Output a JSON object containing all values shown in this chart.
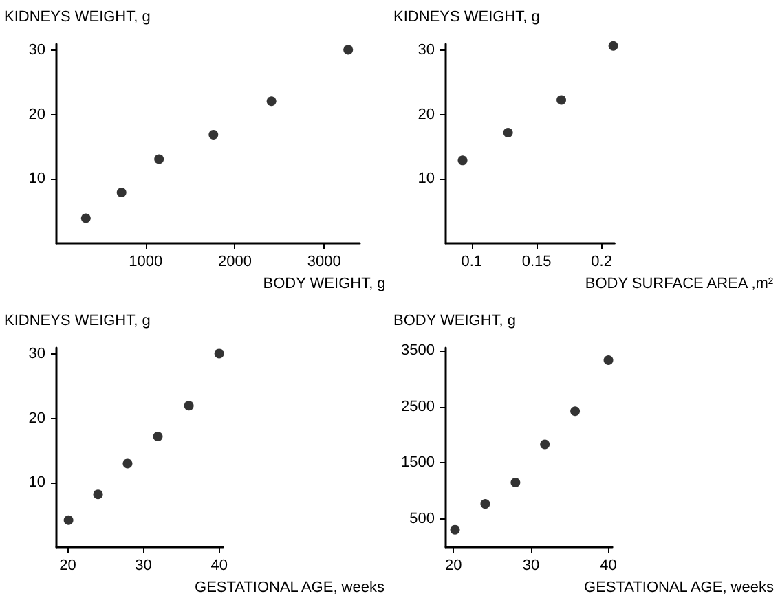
{
  "chart_data": [
    {
      "type": "scatter",
      "ylabel": "KIDNEYS WEIGHT, g",
      "xlabel": "BODY WEIGHT, g",
      "x": [
        330,
        730,
        1150,
        1760,
        2410,
        3270
      ],
      "values": [
        3.9,
        7.9,
        13.1,
        16.9,
        22.1,
        30.1
      ],
      "color": "#000000",
      "marker": "circle",
      "xlim": [
        0,
        3400
      ],
      "xticks": [
        1000,
        2000,
        3000
      ],
      "ylim": [
        0,
        31
      ],
      "yticks": [
        10,
        20,
        30
      ],
      "grid": false
    },
    {
      "type": "scatter",
      "ylabel": "KIDNEYS WEIGHT, g",
      "xlabel": "BODY SURFACE AREA ,m²",
      "x": [
        0.093,
        0.128,
        0.169,
        0.209
      ],
      "values": [
        12.9,
        17.2,
        22.3,
        30.7
      ],
      "color": "#000000",
      "marker": "circle",
      "xlim": [
        0.08,
        0.21
      ],
      "xticks": [
        {
          "value": 0.1,
          "label": "0.1"
        },
        0.15,
        {
          "value": 0.2,
          "label": "0.2"
        }
      ],
      "ylim": [
        0,
        31
      ],
      "yticks": [
        10,
        20,
        30
      ],
      "grid": false
    },
    {
      "type": "scatter",
      "ylabel": "KIDNEYS WEIGHT, g",
      "xlabel": "GESTATIONAL AGE, weeks",
      "x": [
        20.1,
        24,
        27.9,
        31.9,
        36,
        40
      ],
      "values": [
        4.2,
        8.2,
        13,
        17.2,
        22,
        30.1
      ],
      "color": "#000000",
      "marker": "circle",
      "xlim": [
        18.5,
        40.5
      ],
      "xticks": [
        20,
        30,
        40
      ],
      "ylim": [
        0,
        31
      ],
      "yticks": [
        10,
        20,
        30
      ],
      "grid": false
    },
    {
      "type": "scatter",
      "ylabel": "BODY WEIGHT, g",
      "xlabel": "GESTATIONAL AGE, weeks",
      "x": [
        20.2,
        24.1,
        28,
        31.8,
        35.7,
        40
      ],
      "values": [
        310,
        770,
        1150,
        1830,
        2420,
        3330
      ],
      "color": "#000000",
      "marker": "circle",
      "xlim": [
        19,
        40.5
      ],
      "xticks": [
        20,
        30,
        40
      ],
      "ylim": [
        0,
        3550
      ],
      "yticks": [
        500,
        1500,
        2500,
        3500
      ],
      "grid": false
    }
  ]
}
